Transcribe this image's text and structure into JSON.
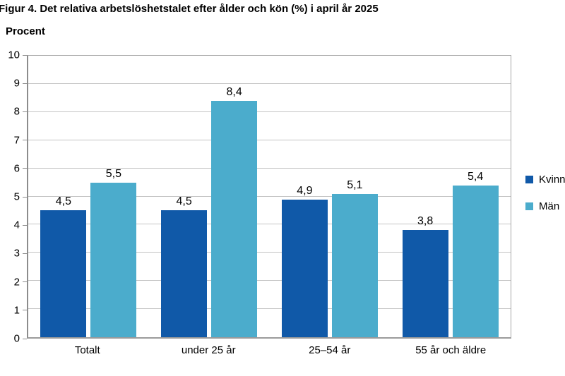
{
  "title": "Figur 4. Det relativa arbetslöshetstalet efter ålder och kön (%) i april år 2025",
  "chart_data": {
    "type": "bar",
    "title": "Figur 4. Det relativa arbetslöshetstalet efter ålder och kön (%) i april år 2025",
    "xlabel": "",
    "ylabel": "Procent",
    "categories": [
      "Totalt",
      "under 25 år",
      "25–54 år",
      "55 år och äldre"
    ],
    "series": [
      {
        "name": "Kvinnor",
        "color": "#1059A8",
        "values": [
          4.5,
          4.5,
          4.9,
          3.8
        ],
        "labels": [
          "4,5",
          "4,5",
          "4,9",
          "3,8"
        ]
      },
      {
        "name": "Män",
        "color": "#4BACCC",
        "values": [
          5.5,
          8.4,
          5.1,
          5.4
        ],
        "labels": [
          "5,5",
          "8,4",
          "5,1",
          "5,4"
        ]
      }
    ],
    "ylim": [
      0,
      10
    ],
    "yticks": [
      0,
      1,
      2,
      3,
      4,
      5,
      6,
      7,
      8,
      9,
      10
    ],
    "grid": "horizontal",
    "legend_position": "right"
  },
  "colors": {
    "grid": "#C4C4C4",
    "axis": "#8C8C8C",
    "plot_border": "#A6A6A6",
    "text": "#000000",
    "background": "#FFFFFF"
  }
}
